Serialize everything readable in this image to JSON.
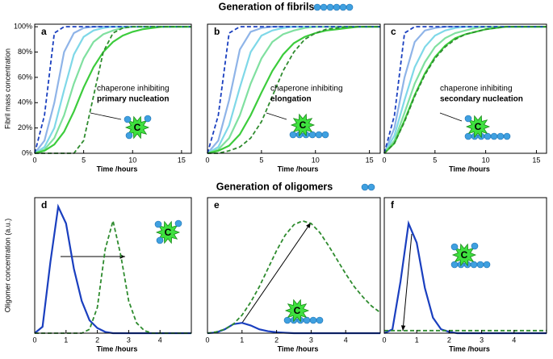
{
  "sections": [
    "Generation of fibrils",
    "Generation of oligomers"
  ],
  "chart_data": [
    {
      "type": "line",
      "title": "a",
      "xlabel": "Time /hours",
      "ylabel": "Fibril mass concentration",
      "annotation": [
        "chaperone inhibiting",
        "primary nucleation"
      ],
      "icon": "C",
      "x": [
        0,
        1,
        2,
        3,
        4,
        5,
        6,
        7,
        8,
        9,
        10,
        11,
        12,
        13,
        14,
        15,
        16
      ],
      "xlim": [
        0,
        16
      ],
      "xticks": [
        0,
        5,
        10,
        15
      ],
      "ylim": [
        0,
        102
      ],
      "yticks": [
        {
          "value": 0,
          "label": "0%"
        },
        {
          "value": 20,
          "label": "20%"
        },
        {
          "value": 40,
          "label": "40%"
        },
        {
          "value": 60,
          "label": "60%"
        },
        {
          "value": 80,
          "label": "80%"
        },
        {
          "value": 100,
          "label": "100%"
        }
      ],
      "series": [
        {
          "color": "#8fb4e8",
          "dash": false,
          "values": [
            0,
            10,
            40,
            80,
            95,
            99,
            100,
            100,
            100,
            100,
            100,
            100,
            100,
            100,
            100,
            100,
            100
          ]
        },
        {
          "color": "#7fd8e8",
          "dash": false,
          "values": [
            0,
            5,
            20,
            50,
            78,
            92,
            97,
            99,
            100,
            100,
            100,
            100,
            100,
            100,
            100,
            100,
            100
          ]
        },
        {
          "color": "#80e0a0",
          "dash": false,
          "values": [
            0,
            3,
            12,
            30,
            55,
            75,
            88,
            94,
            97,
            99,
            100,
            100,
            100,
            100,
            100,
            100,
            100
          ]
        },
        {
          "color": "#3ccc3c",
          "dash": false,
          "values": [
            0,
            2,
            7,
            17,
            33,
            52,
            68,
            80,
            88,
            93,
            96,
            98,
            99,
            100,
            100,
            100,
            100
          ]
        },
        {
          "color": "#1a3fbf",
          "dash": true,
          "values": [
            0,
            30,
            95,
            100,
            100,
            100,
            100,
            100,
            100,
            100,
            100,
            100,
            100,
            100,
            100,
            100,
            100
          ]
        },
        {
          "color": "#2e8b2e",
          "dash": true,
          "values": [
            0,
            0,
            0,
            0,
            0,
            10,
            45,
            80,
            95,
            99,
            100,
            100,
            100,
            100,
            100,
            100,
            100
          ]
        }
      ]
    },
    {
      "type": "line",
      "title": "b",
      "xlabel": "Time /hours",
      "annotation": [
        "chaperone inhibiting",
        "elongation"
      ],
      "icon": "C",
      "x": [
        0,
        1,
        2,
        3,
        4,
        5,
        6,
        7,
        8,
        9,
        10,
        11,
        12,
        13,
        14,
        15,
        16
      ],
      "xlim": [
        0,
        16
      ],
      "xticks": [
        0,
        5,
        10,
        15
      ],
      "ylim": [
        0,
        102
      ],
      "series": [
        {
          "color": "#8fb4e8",
          "dash": false,
          "values": [
            0,
            10,
            42,
            82,
            96,
            99,
            100,
            100,
            100,
            100,
            100,
            100,
            100,
            100,
            100,
            100,
            100
          ]
        },
        {
          "color": "#7fd8e8",
          "dash": false,
          "values": [
            0,
            5,
            22,
            52,
            80,
            93,
            97,
            99,
            100,
            100,
            100,
            100,
            100,
            100,
            100,
            100,
            100
          ]
        },
        {
          "color": "#80e0a0",
          "dash": false,
          "values": [
            0,
            3,
            12,
            30,
            55,
            75,
            88,
            94,
            97,
            99,
            100,
            100,
            100,
            100,
            100,
            100,
            100
          ]
        },
        {
          "color": "#3ccc3c",
          "dash": false,
          "values": [
            0,
            2,
            6,
            15,
            30,
            48,
            65,
            78,
            87,
            92,
            95,
            97,
            98,
            99,
            100,
            100,
            100
          ]
        },
        {
          "color": "#1a3fbf",
          "dash": true,
          "values": [
            0,
            30,
            95,
            100,
            100,
            100,
            100,
            100,
            100,
            100,
            100,
            100,
            100,
            100,
            100,
            100,
            100
          ]
        },
        {
          "color": "#2e8b2e",
          "dash": true,
          "values": [
            0,
            0,
            2,
            5,
            12,
            25,
            45,
            65,
            80,
            90,
            95,
            98,
            99,
            100,
            100,
            100,
            100
          ]
        }
      ]
    },
    {
      "type": "line",
      "title": "c",
      "xlabel": "Time /hours",
      "annotation": [
        "chaperone inhibiting",
        "secondary nucleation"
      ],
      "icon": "C",
      "x": [
        0,
        1,
        2,
        3,
        4,
        5,
        6,
        7,
        8,
        9,
        10,
        11,
        12,
        13,
        14,
        15,
        16
      ],
      "xlim": [
        0,
        16
      ],
      "xticks": [
        0,
        5,
        10,
        15
      ],
      "ylim": [
        0,
        102
      ],
      "series": [
        {
          "color": "#8fb4e8",
          "dash": false,
          "values": [
            0,
            20,
            60,
            88,
            97,
            99,
            100,
            100,
            100,
            100,
            100,
            100,
            100,
            100,
            100,
            100,
            100
          ]
        },
        {
          "color": "#7fd8e8",
          "dash": false,
          "values": [
            0,
            14,
            42,
            68,
            84,
            93,
            97,
            99,
            100,
            100,
            100,
            100,
            100,
            100,
            100,
            100,
            100
          ]
        },
        {
          "color": "#80e0a0",
          "dash": false,
          "values": [
            0,
            10,
            32,
            55,
            72,
            84,
            91,
            95,
            97,
            99,
            100,
            100,
            100,
            100,
            100,
            100,
            100
          ]
        },
        {
          "color": "#3ccc3c",
          "dash": false,
          "values": [
            0,
            8,
            26,
            46,
            63,
            76,
            85,
            91,
            94,
            96,
            98,
            99,
            100,
            100,
            100,
            100,
            100
          ]
        },
        {
          "color": "#1a3fbf",
          "dash": true,
          "values": [
            0,
            30,
            95,
            100,
            100,
            100,
            100,
            100,
            100,
            100,
            100,
            100,
            100,
            100,
            100,
            100,
            100
          ]
        },
        {
          "color": "#2e8b2e",
          "dash": true,
          "values": [
            0,
            8,
            25,
            45,
            62,
            75,
            84,
            90,
            94,
            96,
            98,
            99,
            100,
            100,
            100,
            100,
            100
          ]
        }
      ]
    },
    {
      "type": "line",
      "title": "d",
      "xlabel": "Time /hours",
      "ylabel": "Oligomer concentration (a.u.)",
      "icon": "C",
      "x": [
        0,
        0.25,
        0.5,
        0.75,
        1,
        1.25,
        1.5,
        1.75,
        2,
        2.25,
        2.5,
        2.75,
        3,
        3.25,
        3.5,
        3.75,
        4,
        4.25,
        4.5,
        4.75,
        5
      ],
      "xlim": [
        0,
        5
      ],
      "xticks": [
        0,
        1,
        2,
        3,
        4
      ],
      "ylim": [
        0,
        105
      ],
      "series": [
        {
          "color": "#1a3fbf",
          "dash": false,
          "values": [
            0,
            5,
            55,
            98,
            85,
            50,
            25,
            10,
            4,
            1,
            0,
            0,
            0,
            0,
            0,
            0,
            0,
            0,
            0,
            0,
            0
          ]
        },
        {
          "color": "#2e8b2e",
          "dash": true,
          "values": [
            0,
            0,
            0,
            0,
            0,
            0,
            0,
            3,
            20,
            65,
            87,
            60,
            25,
            8,
            2,
            0,
            0,
            0,
            0,
            0,
            0
          ]
        }
      ]
    },
    {
      "type": "line",
      "title": "e",
      "xlabel": "Time /hours",
      "icon": "C",
      "x": [
        0,
        0.25,
        0.5,
        0.75,
        1,
        1.25,
        1.5,
        1.75,
        2,
        2.25,
        2.5,
        2.75,
        3,
        3.25,
        3.5,
        3.75,
        4,
        4.25,
        4.5,
        4.75,
        5
      ],
      "xlim": [
        0,
        5
      ],
      "xticks": [
        0,
        1,
        2,
        3,
        4
      ],
      "ylim": [
        0,
        105
      ],
      "series": [
        {
          "color": "#1a3fbf",
          "dash": false,
          "values": [
            0,
            0.5,
            3,
            7,
            8,
            6,
            3,
            1.5,
            0.7,
            0.3,
            0,
            0,
            0,
            0,
            0,
            0,
            0,
            0,
            0,
            0,
            0
          ]
        },
        {
          "color": "#2e8b2e",
          "dash": true,
          "values": [
            0,
            1,
            3,
            7,
            14,
            24,
            36,
            50,
            64,
            76,
            84,
            87,
            85,
            78,
            68,
            57,
            46,
            36,
            28,
            21,
            16
          ]
        }
      ]
    },
    {
      "type": "line",
      "title": "f",
      "xlabel": "Time /hours",
      "icon": "C",
      "x": [
        0,
        0.25,
        0.5,
        0.75,
        1,
        1.25,
        1.5,
        1.75,
        2,
        2.25,
        2.5,
        2.75,
        3,
        3.25,
        3.5,
        3.75,
        4,
        4.25,
        4.5,
        4.75,
        5
      ],
      "xlim": [
        0,
        5
      ],
      "xticks": [
        0,
        1,
        2,
        3,
        4
      ],
      "ylim": [
        0,
        105
      ],
      "series": [
        {
          "color": "#1a3fbf",
          "dash": false,
          "values": [
            0,
            3,
            40,
            85,
            70,
            35,
            12,
            3,
            1,
            0,
            0,
            0,
            0,
            0,
            0,
            0,
            0,
            0,
            0,
            0,
            0
          ]
        },
        {
          "color": "#2e8b2e",
          "dash": true,
          "values": [
            2,
            2,
            2,
            2,
            2,
            2,
            2,
            2,
            2,
            2,
            2,
            2,
            2,
            2,
            2,
            2,
            2,
            2,
            2,
            2,
            2
          ]
        }
      ]
    }
  ]
}
